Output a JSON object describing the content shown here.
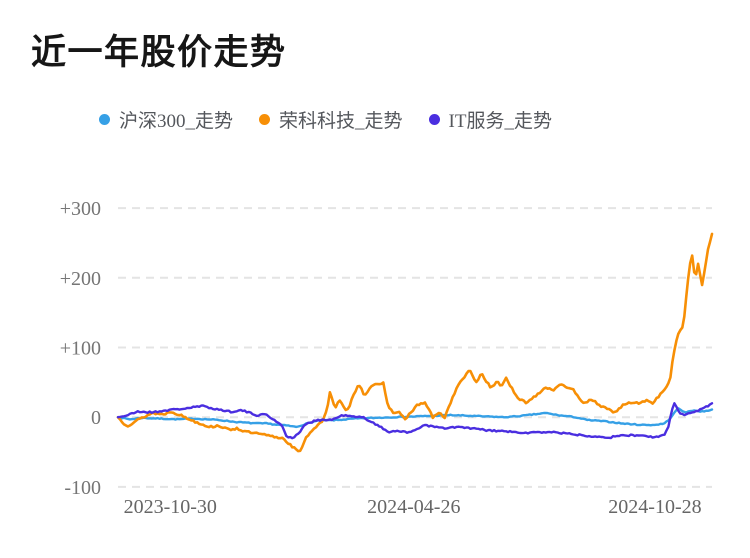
{
  "header": {
    "title": "近一年股价走势"
  },
  "legend": [
    {
      "label": "沪深300_走势",
      "color": "#36a0e6"
    },
    {
      "label": "荣科科技_走势",
      "color": "#f78f06"
    },
    {
      "label": "IT服务_走势",
      "color": "#4a2ee0"
    }
  ],
  "colors": {
    "grid": "#e4e4e4",
    "y_tick_text": "#757575",
    "x_tick_text": "#666666",
    "background": "#ffffff"
  },
  "chart_data": {
    "type": "line",
    "title": "近一年股价走势",
    "xlabel": "",
    "ylabel": "",
    "x_unit": "fraction of date range 2023-10-30 to 2024-10-28",
    "y_unit": "relative change (points)",
    "ylim": [
      -100,
      300
    ],
    "grid": "horizontal dashed",
    "legend_position": "top",
    "x_axis": {
      "tick_labels": [
        "2023-10-30",
        "2024-04-26",
        "2024-10-28"
      ]
    },
    "y_axis": {
      "ticks": [
        {
          "label": "+300",
          "value": 300
        },
        {
          "label": "+200",
          "value": 200
        },
        {
          "label": "+100",
          "value": 100
        },
        {
          "label": "0",
          "value": 0
        },
        {
          "label": "-100",
          "value": -100
        }
      ]
    },
    "series": [
      {
        "name": "沪深300_走势",
        "color": "#36a0e6",
        "points": [
          [
            0,
            0
          ],
          [
            0.02,
            -3
          ],
          [
            0.04,
            -1
          ],
          [
            0.07,
            -2
          ],
          [
            0.1,
            -3
          ],
          [
            0.13,
            -2
          ],
          [
            0.17,
            -4
          ],
          [
            0.2,
            -7
          ],
          [
            0.235,
            -9
          ],
          [
            0.25,
            -9
          ],
          [
            0.27,
            -11
          ],
          [
            0.285,
            -12
          ],
          [
            0.3,
            -14
          ],
          [
            0.315,
            -10
          ],
          [
            0.335,
            -5
          ],
          [
            0.37,
            -4
          ],
          [
            0.4,
            -2
          ],
          [
            0.43,
            -1
          ],
          [
            0.46,
            0
          ],
          [
            0.5,
            1
          ],
          [
            0.53,
            2
          ],
          [
            0.56,
            3
          ],
          [
            0.59,
            2
          ],
          [
            0.62,
            1
          ],
          [
            0.65,
            0
          ],
          [
            0.68,
            2
          ],
          [
            0.7,
            4
          ],
          [
            0.72,
            6
          ],
          [
            0.74,
            3
          ],
          [
            0.77,
            0
          ],
          [
            0.79,
            -4
          ],
          [
            0.82,
            -6
          ],
          [
            0.85,
            -9
          ],
          [
            0.88,
            -11
          ],
          [
            0.905,
            -11
          ],
          [
            0.92,
            -9
          ],
          [
            0.928,
            -3
          ],
          [
            0.935,
            4
          ],
          [
            0.942,
            13
          ],
          [
            0.95,
            9
          ],
          [
            0.958,
            7
          ],
          [
            0.965,
            9
          ],
          [
            0.972,
            10
          ],
          [
            0.98,
            8
          ],
          [
            0.99,
            9
          ],
          [
            1,
            11
          ]
        ]
      },
      {
        "name": "荣科科技_走势",
        "color": "#f78f06",
        "points": [
          [
            0,
            0
          ],
          [
            0.008,
            -8
          ],
          [
            0.017,
            -12
          ],
          [
            0.033,
            -4
          ],
          [
            0.05,
            3
          ],
          [
            0.058,
            6
          ],
          [
            0.075,
            4
          ],
          [
            0.09,
            8
          ],
          [
            0.105,
            3
          ],
          [
            0.12,
            -3
          ],
          [
            0.135,
            -8
          ],
          [
            0.155,
            -14
          ],
          [
            0.17,
            -12
          ],
          [
            0.185,
            -18
          ],
          [
            0.2,
            -16
          ],
          [
            0.215,
            -21
          ],
          [
            0.23,
            -23
          ],
          [
            0.25,
            -26
          ],
          [
            0.268,
            -29
          ],
          [
            0.278,
            -30
          ],
          [
            0.288,
            -38
          ],
          [
            0.3,
            -47
          ],
          [
            0.308,
            -50
          ],
          [
            0.315,
            -30
          ],
          [
            0.33,
            -16
          ],
          [
            0.345,
            -5
          ],
          [
            0.352,
            10
          ],
          [
            0.357,
            39
          ],
          [
            0.365,
            13
          ],
          [
            0.373,
            24
          ],
          [
            0.385,
            7
          ],
          [
            0.405,
            49
          ],
          [
            0.415,
            31
          ],
          [
            0.427,
            46
          ],
          [
            0.44,
            46
          ],
          [
            0.447,
            49
          ],
          [
            0.455,
            14
          ],
          [
            0.465,
            6
          ],
          [
            0.475,
            7
          ],
          [
            0.483,
            -4
          ],
          [
            0.503,
            17
          ],
          [
            0.517,
            21
          ],
          [
            0.53,
            0
          ],
          [
            0.542,
            6
          ],
          [
            0.55,
            0
          ],
          [
            0.567,
            36
          ],
          [
            0.578,
            53
          ],
          [
            0.592,
            67
          ],
          [
            0.603,
            50
          ],
          [
            0.612,
            63
          ],
          [
            0.628,
            41
          ],
          [
            0.638,
            52
          ],
          [
            0.645,
            44
          ],
          [
            0.653,
            57
          ],
          [
            0.672,
            27
          ],
          [
            0.688,
            21
          ],
          [
            0.7,
            29
          ],
          [
            0.72,
            43
          ],
          [
            0.733,
            39
          ],
          [
            0.745,
            49
          ],
          [
            0.755,
            41
          ],
          [
            0.767,
            39
          ],
          [
            0.783,
            21
          ],
          [
            0.795,
            24
          ],
          [
            0.805,
            21
          ],
          [
            0.817,
            14
          ],
          [
            0.837,
            7
          ],
          [
            0.85,
            17
          ],
          [
            0.862,
            21
          ],
          [
            0.875,
            20
          ],
          [
            0.888,
            24
          ],
          [
            0.9,
            21
          ],
          [
            0.912,
            31
          ],
          [
            0.925,
            46
          ],
          [
            0.93,
            57
          ],
          [
            0.933,
            77
          ],
          [
            0.937,
            96
          ],
          [
            0.94,
            110
          ],
          [
            0.943,
            120
          ],
          [
            0.947,
            126
          ],
          [
            0.95,
            129
          ],
          [
            0.953,
            143
          ],
          [
            0.956,
            167
          ],
          [
            0.959,
            191
          ],
          [
            0.962,
            214
          ],
          [
            0.966,
            236
          ],
          [
            0.97,
            207
          ],
          [
            0.972,
            199
          ],
          [
            0.977,
            222
          ],
          [
            0.983,
            189
          ],
          [
            0.988,
            214
          ],
          [
            0.993,
            239
          ],
          [
            1,
            263
          ]
        ]
      },
      {
        "name": "IT服务_走势",
        "color": "#4a2ee0",
        "points": [
          [
            0,
            0
          ],
          [
            0.017,
            3
          ],
          [
            0.033,
            8
          ],
          [
            0.058,
            7
          ],
          [
            0.083,
            10
          ],
          [
            0.108,
            12
          ],
          [
            0.125,
            14
          ],
          [
            0.142,
            16
          ],
          [
            0.158,
            13
          ],
          [
            0.175,
            10
          ],
          [
            0.19,
            8
          ],
          [
            0.208,
            10
          ],
          [
            0.222,
            6
          ],
          [
            0.233,
            3
          ],
          [
            0.25,
            4
          ],
          [
            0.262,
            -4
          ],
          [
            0.275,
            -10
          ],
          [
            0.285,
            -29
          ],
          [
            0.295,
            -30
          ],
          [
            0.305,
            -22
          ],
          [
            0.315,
            -11
          ],
          [
            0.333,
            -4
          ],
          [
            0.358,
            -4
          ],
          [
            0.38,
            3
          ],
          [
            0.4,
            0
          ],
          [
            0.412,
            0
          ],
          [
            0.428,
            -7
          ],
          [
            0.455,
            -21
          ],
          [
            0.472,
            -19
          ],
          [
            0.488,
            -23
          ],
          [
            0.517,
            -11
          ],
          [
            0.533,
            -14
          ],
          [
            0.55,
            -16
          ],
          [
            0.572,
            -14
          ],
          [
            0.595,
            -16
          ],
          [
            0.622,
            -19
          ],
          [
            0.667,
            -21
          ],
          [
            0.672,
            -23
          ],
          [
            0.728,
            -21
          ],
          [
            0.783,
            -26
          ],
          [
            0.828,
            -29
          ],
          [
            0.85,
            -26
          ],
          [
            0.878,
            -26
          ],
          [
            0.905,
            -29
          ],
          [
            0.92,
            -26
          ],
          [
            0.928,
            -10
          ],
          [
            0.932,
            10
          ],
          [
            0.937,
            20
          ],
          [
            0.945,
            6
          ],
          [
            0.953,
            3
          ],
          [
            0.963,
            7
          ],
          [
            0.978,
            10
          ],
          [
            0.995,
            17
          ],
          [
            1,
            20
          ]
        ]
      }
    ]
  }
}
